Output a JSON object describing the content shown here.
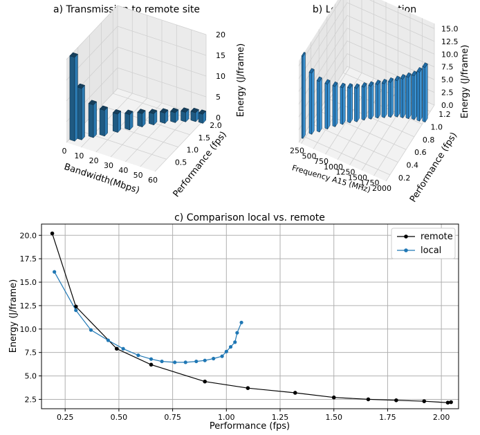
{
  "chart_data": [
    {
      "type": "bar3d",
      "title": "a) Transmission to remote site",
      "xlabel": "Bandwidth(Mbps)",
      "ylabel": "Performance (fps)",
      "zlabel": "Energy (J/frame)",
      "x_ticks": [
        "0",
        "10",
        "20",
        "30",
        "40",
        "50",
        "60"
      ],
      "y_ticks": [
        "0.5",
        "1.0",
        "1.5",
        "2.0"
      ],
      "z_ticks": [
        "0",
        "5",
        "10",
        "15",
        "20"
      ],
      "xlim": [
        0,
        60
      ],
      "ylim": [
        0,
        2.2
      ],
      "zlim": [
        0,
        20
      ],
      "bars": [
        {
          "x": 2,
          "y": 0.19,
          "z": 20.2
        },
        {
          "x": 5,
          "y": 0.3,
          "z": 12.4
        },
        {
          "x": 10,
          "y": 0.49,
          "z": 7.9
        },
        {
          "x": 15,
          "y": 0.65,
          "z": 6.2
        },
        {
          "x": 20,
          "y": 0.9,
          "z": 4.4
        },
        {
          "x": 25,
          "y": 1.1,
          "z": 3.7
        },
        {
          "x": 30,
          "y": 1.32,
          "z": 3.2
        },
        {
          "x": 35,
          "y": 1.5,
          "z": 2.7
        },
        {
          "x": 40,
          "y": 1.66,
          "z": 2.5
        },
        {
          "x": 45,
          "y": 1.79,
          "z": 2.4
        },
        {
          "x": 50,
          "y": 1.92,
          "z": 2.3
        },
        {
          "x": 55,
          "y": 2.03,
          "z": 2.15
        },
        {
          "x": 60,
          "y": 2.05,
          "z": 2.2
        }
      ],
      "grid": true
    },
    {
      "type": "bar3d",
      "title": "b) Local Computation",
      "xlabel": "Frequency A15 (MHz)",
      "ylabel": "Performance (fps)",
      "zlabel": "Energy (J/frame)",
      "x_ticks": [
        "250",
        "500",
        "750",
        "1000",
        "1250",
        "1500",
        "1750",
        "2000"
      ],
      "y_ticks": [
        "0.2",
        "0.4",
        "0.6",
        "0.8",
        "1.0",
        "1.2"
      ],
      "z_ticks": [
        "0.0",
        "2.5",
        "5.0",
        "7.5",
        "10.0",
        "12.5",
        "15.0"
      ],
      "xlim": [
        200,
        2000
      ],
      "ylim": [
        0.1,
        1.3
      ],
      "zlim": [
        0,
        16
      ],
      "bars": [
        {
          "x": 200,
          "y": 0.2,
          "z": 16.1
        },
        {
          "x": 300,
          "y": 0.3,
          "z": 12.0
        },
        {
          "x": 400,
          "y": 0.37,
          "z": 9.9
        },
        {
          "x": 500,
          "y": 0.45,
          "z": 8.8
        },
        {
          "x": 600,
          "y": 0.52,
          "z": 7.9
        },
        {
          "x": 700,
          "y": 0.59,
          "z": 7.2
        },
        {
          "x": 800,
          "y": 0.65,
          "z": 6.8
        },
        {
          "x": 900,
          "y": 0.7,
          "z": 6.55
        },
        {
          "x": 1000,
          "y": 0.76,
          "z": 6.45
        },
        {
          "x": 1100,
          "y": 0.81,
          "z": 6.45
        },
        {
          "x": 1200,
          "y": 0.86,
          "z": 6.55
        },
        {
          "x": 1300,
          "y": 0.9,
          "z": 6.65
        },
        {
          "x": 1400,
          "y": 0.94,
          "z": 6.85
        },
        {
          "x": 1500,
          "y": 0.98,
          "z": 7.1
        },
        {
          "x": 1600,
          "y": 1.0,
          "z": 7.6
        },
        {
          "x": 1700,
          "y": 1.02,
          "z": 8.1
        },
        {
          "x": 1800,
          "y": 1.04,
          "z": 8.6
        },
        {
          "x": 1900,
          "y": 1.05,
          "z": 9.6
        },
        {
          "x": 2000,
          "y": 1.07,
          "z": 10.7
        }
      ],
      "grid": true
    },
    {
      "type": "line",
      "title": "c) Comparison local vs. remote",
      "xlabel": "Performance (fps)",
      "ylabel": "Energy (J/frame)",
      "xlim": [
        0.14,
        2.08
      ],
      "ylim": [
        1.5,
        21.2
      ],
      "x_ticks": [
        "0.25",
        "0.50",
        "0.75",
        "1.00",
        "1.25",
        "1.50",
        "1.75",
        "2.00"
      ],
      "y_ticks": [
        "2.5",
        "5.0",
        "7.5",
        "10.0",
        "12.5",
        "15.0",
        "17.5",
        "20.0"
      ],
      "grid": true,
      "legend": "top-right",
      "series": [
        {
          "name": "remote",
          "color": "#000000",
          "marker": "circle",
          "x": [
            0.19,
            0.3,
            0.49,
            0.65,
            0.9,
            1.1,
            1.32,
            1.5,
            1.66,
            1.79,
            1.92,
            2.03,
            2.045
          ],
          "y": [
            20.2,
            12.4,
            7.9,
            6.2,
            4.4,
            3.7,
            3.2,
            2.7,
            2.5,
            2.4,
            2.3,
            2.15,
            2.2
          ]
        },
        {
          "name": "local",
          "color": "#1f77b4",
          "marker": "pentagon",
          "x": [
            0.2,
            0.3,
            0.37,
            0.45,
            0.52,
            0.59,
            0.65,
            0.7,
            0.76,
            0.81,
            0.86,
            0.9,
            0.94,
            0.98,
            1.0,
            1.02,
            1.04,
            1.05,
            1.07
          ],
          "y": [
            16.1,
            12.0,
            9.9,
            8.8,
            7.9,
            7.2,
            6.8,
            6.55,
            6.45,
            6.45,
            6.55,
            6.65,
            6.85,
            7.1,
            7.6,
            8.1,
            8.6,
            9.6,
            10.7
          ]
        }
      ]
    }
  ]
}
